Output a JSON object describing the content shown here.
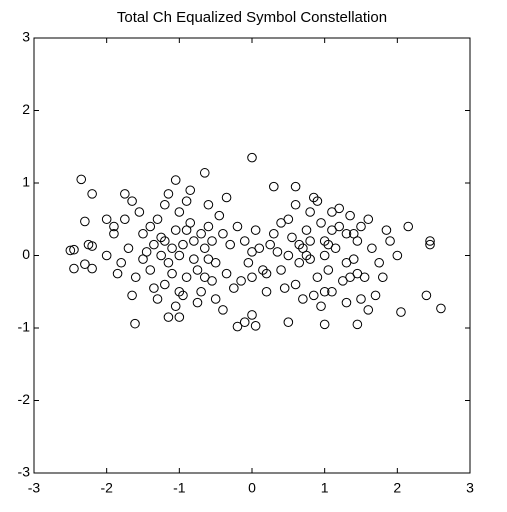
{
  "chart_data": {
    "type": "scatter",
    "title": "Total Ch Equalized Symbol Constellation",
    "xlim": [
      -3,
      3
    ],
    "ylim": [
      -3,
      3
    ],
    "xticks": [
      -3,
      -2,
      -1,
      0,
      1,
      2,
      3
    ],
    "yticks": [
      -3,
      -2,
      -1,
      0,
      1,
      2,
      3
    ],
    "grid": false,
    "marker": "open-circle",
    "color": "#000000",
    "x": [
      -2.35,
      -2.2,
      -2.45,
      -2.5,
      -2.45,
      -2.3,
      -2.25,
      -2.2,
      -2.3,
      -2.2,
      -2.0,
      -1.9,
      -1.75,
      -1.65,
      -1.61,
      0.0,
      -1.05,
      -0.65,
      2.45,
      2.45,
      2.6,
      2.4,
      2.15,
      2.05,
      1.45,
      1.0,
      0.5,
      -0.2,
      -0.1,
      0.0,
      0.05,
      -1.15,
      -1.0,
      0.3,
      0.6,
      -0.35,
      -1.5,
      -1.4,
      -1.3,
      -1.2,
      -1.1,
      -1.0,
      -0.9,
      -0.8,
      -0.7,
      -0.6,
      -0.5,
      -0.4,
      -1.45,
      -1.35,
      -1.25,
      -1.15,
      -1.05,
      -0.95,
      -0.85,
      -0.75,
      -0.65,
      -0.55,
      -0.45,
      -0.35,
      -1.6,
      -1.7,
      -1.8,
      -1.55,
      -1.2,
      -0.9,
      -0.6,
      -1.3,
      -1.0,
      -0.75,
      -0.5,
      -1.1,
      -0.8,
      -0.7,
      -1.25,
      -0.95,
      -1.4,
      -0.3,
      -0.25,
      -0.2,
      -1.9,
      -1.85,
      -2.0,
      -1.65,
      -1.75,
      -1.05,
      -0.85,
      -1.15,
      -0.4,
      -1.5,
      -1.0,
      -0.6,
      -0.55,
      -1.2,
      -1.35,
      -0.9,
      -0.65,
      0.3,
      0.4,
      0.5,
      0.6,
      0.7,
      0.8,
      0.9,
      1.0,
      1.1,
      1.2,
      1.3,
      1.4,
      0.35,
      0.45,
      0.55,
      0.65,
      0.75,
      0.85,
      0.95,
      1.05,
      1.15,
      1.25,
      1.35,
      1.45,
      1.55,
      1.65,
      1.75,
      1.6,
      1.2,
      0.9,
      0.6,
      0.7,
      1.0,
      1.3,
      1.5,
      0.2,
      0.8,
      1.3,
      0.75,
      1.05,
      1.5,
      0.25,
      0.2,
      1.85,
      1.8,
      2.0,
      1.7,
      1.9,
      0.95,
      0.85,
      1.1,
      1.6,
      0.5,
      1.0,
      1.4,
      1.45,
      0.8,
      0.65,
      1.1,
      1.35,
      0.4,
      -0.1,
      0,
      0.1,
      -0.05,
      0.05,
      0.15,
      -0.15,
      0.0
    ],
    "values": [
      1.05,
      0.85,
      0.08,
      0.07,
      -0.18,
      0.47,
      0.15,
      0.13,
      -0.12,
      -0.18,
      0.5,
      0.4,
      0.85,
      0.75,
      -0.94,
      1.35,
      1.04,
      1.14,
      0.2,
      0.15,
      -0.73,
      -0.55,
      0.4,
      -0.78,
      -0.95,
      -0.95,
      -0.92,
      -0.98,
      -0.92,
      -0.82,
      -0.97,
      -0.85,
      -0.85,
      0.95,
      0.95,
      0.8,
      0.3,
      -0.2,
      0.5,
      -0.4,
      0.1,
      0.6,
      -0.3,
      0.2,
      -0.5,
      0.4,
      -0.1,
      0.3,
      0.05,
      -0.45,
      0.25,
      -0.1,
      0.35,
      -0.55,
      0.45,
      -0.2,
      0.1,
      -0.35,
      0.55,
      -0.25,
      -0.3,
      0.1,
      -0.1,
      0.6,
      0.7,
      0.75,
      0.7,
      -0.6,
      -0.5,
      -0.65,
      -0.6,
      -0.25,
      -0.05,
      0.3,
      0.0,
      0.15,
      0.4,
      0.15,
      -0.45,
      0.4,
      0.3,
      -0.25,
      0.0,
      -0.55,
      0.5,
      -0.7,
      0.9,
      0.85,
      -0.75,
      -0.05,
      0.0,
      -0.05,
      0.2,
      0.2,
      0.15,
      0.35,
      -0.3,
      0.3,
      -0.2,
      0.5,
      -0.4,
      0.1,
      0.6,
      -0.3,
      0.2,
      -0.5,
      0.4,
      -0.1,
      0.3,
      0.05,
      -0.45,
      0.25,
      -0.1,
      0.35,
      -0.55,
      0.45,
      -0.2,
      0.1,
      -0.35,
      0.55,
      -0.25,
      -0.3,
      0.1,
      -0.1,
      0.5,
      0.65,
      0.75,
      0.7,
      -0.6,
      -0.5,
      -0.65,
      -0.6,
      -0.25,
      -0.05,
      0.3,
      0.0,
      0.15,
      0.4,
      0.15,
      -0.5,
      0.35,
      -0.3,
      0.0,
      -0.55,
      0.2,
      -0.7,
      0.8,
      0.6,
      -0.75,
      0.0,
      0.0,
      -0.05,
      0.2,
      0.2,
      0.15,
      0.35,
      -0.3,
      0.45,
      0.2,
      -0.3,
      0.1,
      -0.1,
      0.35,
      -0.2,
      -0.35,
      0.05
    ]
  }
}
